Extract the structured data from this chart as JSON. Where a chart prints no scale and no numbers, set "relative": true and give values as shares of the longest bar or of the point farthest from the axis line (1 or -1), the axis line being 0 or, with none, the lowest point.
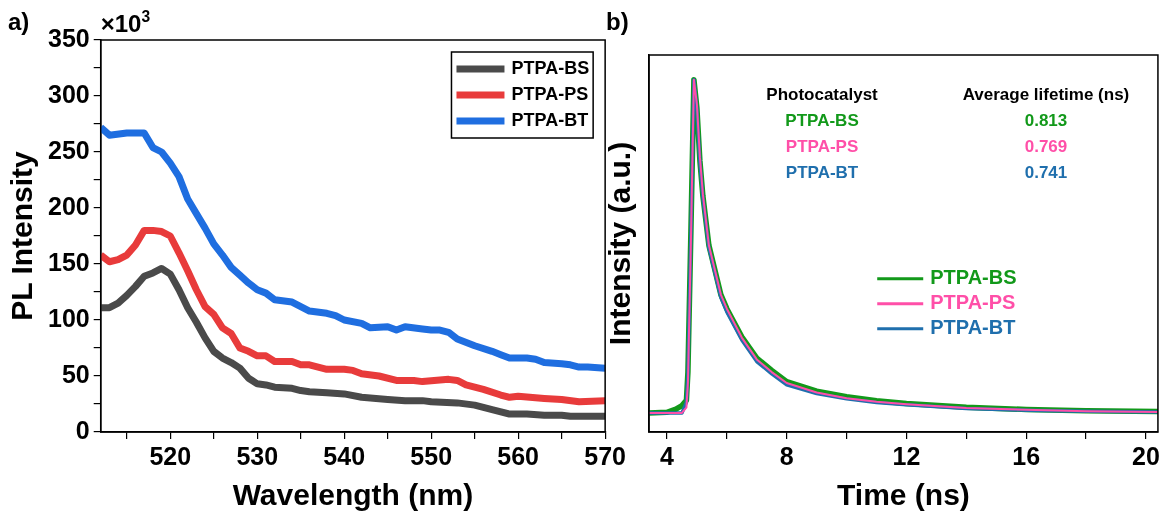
{
  "chart_data": [
    {
      "type": "line",
      "title": "a)",
      "xlabel": "Wavelength (nm)",
      "ylabel": "PL Intensity",
      "annotations": [
        "×10$^{3}$"
      ],
      "xlim": [
        512,
        570
      ],
      "xticks": [
        {
          "value": 515,
          "label": null
        },
        520,
        {
          "value": 525,
          "label": null
        },
        530,
        {
          "value": 535,
          "label": null
        },
        540,
        {
          "value": 545,
          "label": null
        },
        550,
        {
          "value": 555,
          "label": null
        },
        560,
        {
          "value": 565,
          "label": null
        },
        570
      ],
      "ylim": [
        0,
        350
      ],
      "yticks": [
        0,
        {
          "value": 25,
          "label": null
        },
        50,
        {
          "value": 75,
          "label": null
        },
        100,
        {
          "value": 125,
          "label": null
        },
        150,
        {
          "value": 175,
          "label": null
        },
        200,
        {
          "value": 225,
          "label": null
        },
        250,
        {
          "value": 275,
          "label": null
        },
        300,
        {
          "value": 325,
          "label": null
        },
        350
      ],
      "grid": false,
      "legend": "top right",
      "series": [
        {
          "name": "PTPA-BS",
          "color": "#4a4a4a",
          "x": [
            512,
            513,
            514,
            515,
            516,
            517,
            518,
            519,
            520,
            521,
            522,
            523,
            524,
            525,
            526,
            527,
            528,
            529,
            530,
            531,
            532,
            534,
            535,
            536,
            538,
            540,
            542,
            545,
            547,
            549,
            550,
            553,
            555,
            557,
            559,
            561,
            563,
            565,
            566,
            570
          ],
          "values": [
            111,
            111,
            115,
            122,
            130,
            139,
            142,
            146,
            141,
            127,
            111,
            98,
            84,
            72,
            66,
            62,
            57,
            48,
            43,
            42,
            40,
            39,
            37,
            36,
            35,
            34,
            31,
            29,
            28,
            28,
            27,
            26,
            24,
            20,
            16,
            16,
            15,
            15,
            14,
            14
          ]
        },
        {
          "name": "PTPA-PS",
          "color": "#e83b3b",
          "x": [
            512,
            513,
            514,
            515,
            516,
            517,
            518,
            519,
            520,
            521,
            522,
            523,
            524,
            525,
            526,
            527,
            528,
            529,
            530,
            531,
            532,
            534,
            535,
            536,
            538,
            540,
            541,
            542,
            544,
            546,
            548,
            549,
            552,
            553,
            554,
            556,
            558,
            559,
            560,
            563,
            565,
            567,
            570
          ],
          "values": [
            158,
            152,
            154,
            158,
            167,
            180,
            180,
            179,
            175,
            160,
            144,
            127,
            112,
            105,
            93,
            88,
            75,
            72,
            68,
            68,
            63,
            63,
            60,
            60,
            56,
            56,
            55,
            52,
            50,
            46,
            46,
            45,
            47,
            46,
            42,
            38,
            33,
            31,
            32,
            30,
            29,
            27,
            28
          ]
        },
        {
          "name": "PTPA-BT",
          "color": "#1f6ee0",
          "x": [
            512,
            513,
            515,
            517,
            518,
            519,
            520,
            521,
            522,
            523,
            524,
            525,
            526,
            527,
            528,
            529,
            530,
            531,
            532,
            534,
            536,
            538,
            539,
            540,
            542,
            543,
            545,
            546,
            547,
            549,
            550,
            551,
            552,
            553,
            555,
            557,
            558,
            559,
            560,
            561,
            562,
            563,
            565,
            566,
            567,
            568,
            570
          ],
          "values": [
            272,
            265,
            267,
            267,
            254,
            250,
            240,
            228,
            208,
            195,
            182,
            168,
            158,
            147,
            140,
            133,
            127,
            124,
            118,
            116,
            108,
            106,
            104,
            100,
            97,
            93,
            94,
            91,
            94,
            92,
            91,
            91,
            89,
            83,
            77,
            72,
            69,
            66,
            66,
            66,
            65,
            62,
            61,
            60,
            58,
            58,
            57
          ]
        }
      ]
    },
    {
      "type": "line",
      "title": "b)",
      "xlabel": "Time (ns)",
      "ylabel": "Intensity (a.u.)",
      "relative": true,
      "annotations": [
        "Photocatalyst",
        "Average lifetime (ns)",
        "PTPA-BS",
        "0.813",
        "PTPA-PS",
        "0.769",
        "PTPA-BT",
        "0.741"
      ],
      "xlim": [
        3.4,
        20.4
      ],
      "xticks": [
        4,
        {
          "value": 6,
          "label": null
        },
        8,
        {
          "value": 10,
          "label": null
        },
        12,
        {
          "value": 14,
          "label": null
        },
        16,
        {
          "value": 18,
          "label": null
        },
        20
      ],
      "grid": false,
      "legend": "right",
      "series": [
        {
          "name": "PTPA-BS",
          "color": "#12991a",
          "x": [
            3.4,
            4.0,
            4.3,
            4.5,
            4.65,
            4.7,
            4.8,
            4.9,
            5.0,
            5.1,
            5.2,
            5.4,
            5.6,
            5.8,
            6.0,
            6.5,
            7.0,
            7.5,
            8.0,
            9,
            10,
            11,
            12,
            14,
            16,
            18,
            20.4
          ],
          "values": [
            0.054,
            0.056,
            0.065,
            0.075,
            0.09,
            0.17,
            0.57,
            1.0,
            0.92,
            0.77,
            0.67,
            0.53,
            0.46,
            0.39,
            0.35,
            0.27,
            0.21,
            0.175,
            0.143,
            0.116,
            0.1,
            0.089,
            0.081,
            0.07,
            0.064,
            0.06,
            0.058
          ]
        },
        {
          "name": "PTPA-PS",
          "color": "#ff4fa8",
          "x": [
            3.4,
            4.0,
            4.5,
            4.65,
            4.7,
            4.8,
            4.9,
            5.0,
            5.1,
            5.2,
            5.4,
            5.6,
            5.8,
            6.0,
            6.5,
            7.0,
            7.5,
            8.0,
            9,
            10,
            11,
            12,
            14,
            16,
            18,
            20.4
          ],
          "values": [
            0.054,
            0.054,
            0.054,
            0.07,
            0.14,
            0.54,
            1.0,
            0.93,
            0.78,
            0.675,
            0.53,
            0.46,
            0.39,
            0.35,
            0.268,
            0.206,
            0.17,
            0.139,
            0.112,
            0.096,
            0.086,
            0.079,
            0.068,
            0.063,
            0.059,
            0.057
          ]
        },
        {
          "name": "PTPA-BT",
          "color": "#1f6fad",
          "x": [
            3.4,
            4.0,
            4.5,
            4.65,
            4.7,
            4.8,
            4.9,
            5.0,
            5.1,
            5.2,
            5.4,
            5.6,
            5.8,
            6.0,
            6.5,
            7.0,
            7.5,
            8.0,
            9,
            10,
            11,
            12,
            14,
            16,
            18,
            20.4
          ],
          "values": [
            0.054,
            0.054,
            0.054,
            0.084,
            0.16,
            0.564,
            1.0,
            0.917,
            0.766,
            0.665,
            0.523,
            0.453,
            0.382,
            0.341,
            0.261,
            0.2,
            0.165,
            0.134,
            0.109,
            0.094,
            0.084,
            0.077,
            0.067,
            0.062,
            0.059,
            0.057
          ]
        }
      ]
    }
  ]
}
